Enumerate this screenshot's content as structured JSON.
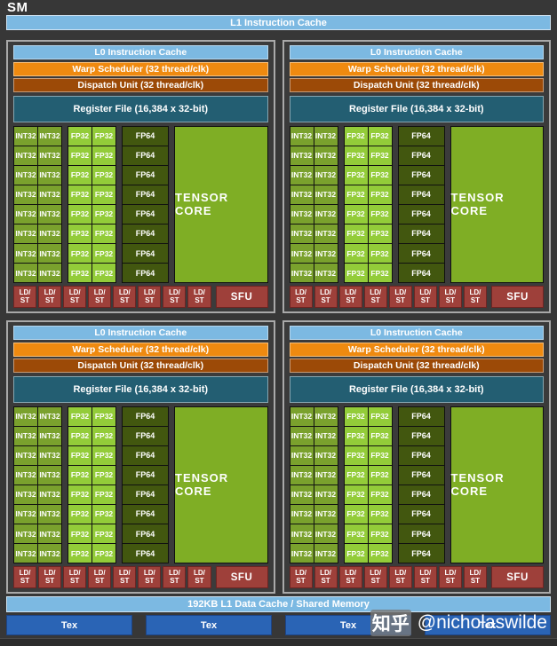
{
  "title": "SM",
  "l1_cache_label": "L1 Instruction Cache",
  "quadrant": {
    "count": 4,
    "l0_label": "L0 Instruction Cache",
    "warp_label": "Warp Scheduler (32 thread/clk)",
    "dispatch_label": "Dispatch Unit (32 thread/clk)",
    "regfile_label": "Register File (16,384 x 32-bit)",
    "int32_label": "INT32",
    "fp32_label": "FP32",
    "fp64_label": "FP64",
    "tensor_label": "TENSOR CORE",
    "ldst_line1": "LD/",
    "ldst_line2": "ST",
    "sfu_label": "SFU",
    "rows": 8,
    "int32_cols": 2,
    "fp32_cols": 2,
    "fp64_cols": 1,
    "ldst_count": 8
  },
  "footer": {
    "l1_data_label": "192KB L1 Data Cache / Shared Memory",
    "tex_label": "Tex",
    "tex_count": 4
  },
  "watermark": {
    "site": "知乎",
    "handle": "@nicholaswilde"
  },
  "colors": {
    "page_bg": "#373737",
    "panel_bg": "#3b3b3b",
    "panel_border": "#a9a9a9",
    "light_blue": "#7cb9e2",
    "orange": "#ef8a10",
    "dark_orange": "#9c4a07",
    "teal": "#235e72",
    "int32_green": "#7aa12d",
    "fp32_green": "#93cc39",
    "fp64_green": "#42570f",
    "tensor_green": "#7fae25",
    "ldst_red": "#9e403a",
    "tex_blue": "#2a64b5",
    "footer_bg": "#2c2c2c"
  }
}
